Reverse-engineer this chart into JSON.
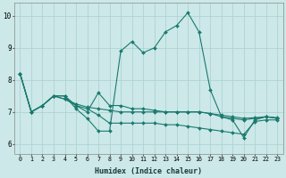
{
  "xlabel": "Humidex (Indice chaleur)",
  "bg_color": "#cce8e8",
  "grid_color": "#aacfcf",
  "line_color": "#1a7a6e",
  "xlim": [
    -0.5,
    23.5
  ],
  "ylim": [
    5.7,
    10.4
  ],
  "xticks": [
    0,
    1,
    2,
    3,
    4,
    5,
    6,
    7,
    8,
    9,
    10,
    11,
    12,
    13,
    14,
    15,
    16,
    17,
    18,
    19,
    20,
    21,
    22,
    23
  ],
  "yticks": [
    6,
    7,
    8,
    9,
    10
  ],
  "s1_x": [
    0,
    1,
    2,
    3,
    4,
    5,
    6,
    7,
    8,
    9,
    10,
    11,
    12,
    13,
    14,
    15,
    16,
    17,
    18,
    19,
    20,
    21,
    22,
    23
  ],
  "s1_y": [
    8.2,
    7.0,
    7.2,
    7.5,
    7.5,
    7.1,
    6.8,
    6.4,
    6.4,
    8.9,
    9.2,
    8.85,
    9.0,
    9.5,
    9.7,
    10.1,
    9.5,
    7.7,
    6.85,
    6.75,
    6.2,
    6.75,
    6.85,
    6.8
  ],
  "s2_x": [
    0,
    1,
    2,
    3,
    4,
    5,
    6,
    7,
    8,
    9,
    10,
    11,
    12,
    13,
    14,
    15,
    16,
    17,
    18,
    19,
    20,
    21,
    22,
    23
  ],
  "s2_y": [
    8.2,
    7.0,
    7.2,
    7.5,
    7.5,
    7.2,
    7.0,
    7.6,
    7.2,
    7.2,
    7.1,
    7.1,
    7.05,
    7.0,
    7.0,
    7.0,
    7.0,
    6.95,
    6.85,
    6.8,
    6.75,
    6.8,
    6.85,
    6.8
  ],
  "s3_x": [
    0,
    1,
    2,
    3,
    4,
    5,
    6,
    7,
    8,
    9,
    10,
    11,
    12,
    13,
    14,
    15,
    16,
    17,
    18,
    19,
    20,
    21,
    22,
    23
  ],
  "s3_y": [
    8.2,
    7.0,
    7.2,
    7.5,
    7.4,
    7.2,
    7.1,
    6.9,
    6.65,
    6.65,
    6.65,
    6.65,
    6.65,
    6.6,
    6.6,
    6.55,
    6.5,
    6.45,
    6.4,
    6.35,
    6.3,
    6.7,
    6.75,
    6.75
  ],
  "s4_x": [
    0,
    1,
    2,
    3,
    4,
    5,
    6,
    7,
    8,
    9,
    10,
    11,
    12,
    13,
    14,
    15,
    16,
    17,
    18,
    19,
    20,
    21,
    22,
    23
  ],
  "s4_y": [
    8.2,
    7.0,
    7.2,
    7.5,
    7.4,
    7.25,
    7.15,
    7.1,
    7.05,
    7.0,
    7.0,
    7.0,
    7.0,
    7.0,
    7.0,
    7.0,
    7.0,
    6.95,
    6.9,
    6.85,
    6.8,
    6.82,
    6.85,
    6.82
  ]
}
